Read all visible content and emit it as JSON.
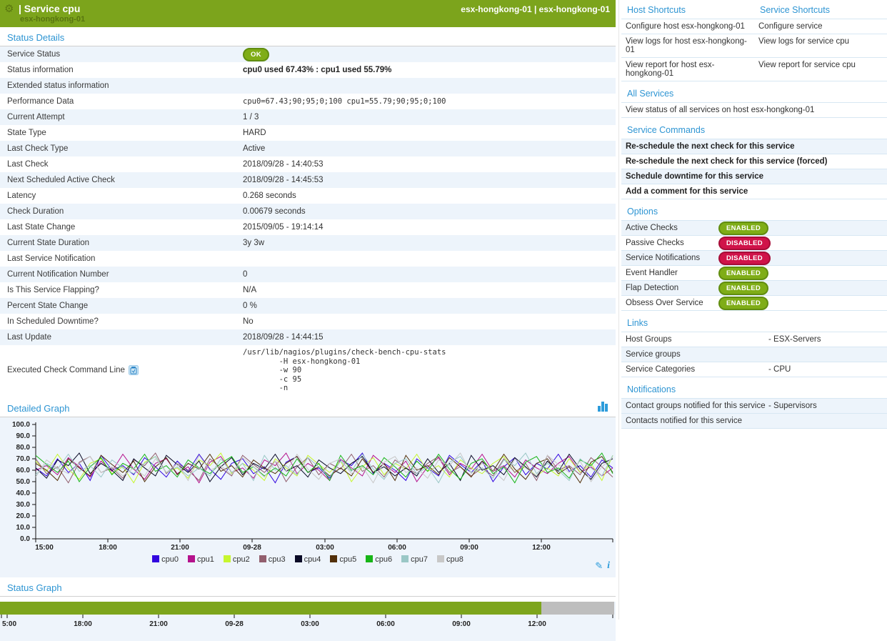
{
  "colors": {
    "accent_green": "#7CA41C",
    "link_blue": "#2E95D3",
    "enabled_green": "#7FAD17",
    "disabled_red": "#D01349",
    "row_alt": "#EDF4FB",
    "panel_bg": "#EEF4FB",
    "status_ok_bar": "#7DA51C",
    "status_nodata_bar": "#BEBEBE"
  },
  "icons": {
    "gear": "⚙",
    "pencil": "✎",
    "info": "i",
    "bar_chart": "bar-chart-icon",
    "copy": "clipboard-icon"
  },
  "header": {
    "title": "| Service cpu",
    "subtitle": "esx-hongkong-01",
    "right": "esx-hongkong-01 | esx-hongkong-01"
  },
  "status_details": {
    "heading": "Status Details",
    "rows": [
      {
        "label": "Service Status",
        "kind": "badge",
        "value": "OK"
      },
      {
        "label": "Status information",
        "kind": "bold",
        "value": "cpu0 used 67.43% : cpu1 used 55.79%"
      },
      {
        "label": "Extended status information",
        "kind": "text",
        "value": ""
      },
      {
        "label": "Performance Data",
        "kind": "mono",
        "value": "cpu0=67.43;90;95;0;100 cpu1=55.79;90;95;0;100"
      },
      {
        "label": "Current Attempt",
        "kind": "text",
        "value": "1 / 3"
      },
      {
        "label": "State Type",
        "kind": "text",
        "value": "HARD"
      },
      {
        "label": "Last Check Type",
        "kind": "text",
        "value": "Active"
      },
      {
        "label": "Last Check",
        "kind": "text",
        "value": "2018/09/28 - 14:40:53"
      },
      {
        "label": "Next Scheduled Active Check",
        "kind": "text",
        "value": "2018/09/28 - 14:45:53"
      },
      {
        "label": "Latency",
        "kind": "text",
        "value": "0.268 seconds"
      },
      {
        "label": "Check Duration",
        "kind": "text",
        "value": "0.00679 seconds"
      },
      {
        "label": "Last State Change",
        "kind": "text",
        "value": "2015/09/05 - 19:14:14"
      },
      {
        "label": "Current State Duration",
        "kind": "text",
        "value": "3y 3w"
      },
      {
        "label": "Last Service Notification",
        "kind": "text",
        "value": ""
      },
      {
        "label": "Current Notification Number",
        "kind": "text",
        "value": "0"
      },
      {
        "label": "Is This Service Flapping?",
        "kind": "text",
        "value": "N/A"
      },
      {
        "label": "Percent State Change",
        "kind": "text",
        "value": "0 %"
      },
      {
        "label": "In Scheduled Downtime?",
        "kind": "text",
        "value": "No"
      },
      {
        "label": "Last Update",
        "kind": "text",
        "value": "2018/09/28 - 14:44:15"
      },
      {
        "label": "Executed Check Command Line",
        "icon": "copy-command-icon",
        "kind": "command",
        "value": "/usr/lib/nagios/plugins/check-bench-cpu-stats\n        -H esx-hongkong-01\n        -w 90\n        -c 95\n        -n"
      }
    ]
  },
  "detailed_graph": {
    "heading": "Detailed Graph"
  },
  "status_graph": {
    "heading": "Status Graph"
  },
  "chart_data": [
    {
      "type": "line",
      "title": "Detailed Graph",
      "ylabel": "",
      "xlabel": "",
      "ylim": [
        0,
        100
      ],
      "yticks": [
        0,
        10,
        20,
        30,
        40,
        50,
        60,
        70,
        80,
        90,
        100
      ],
      "ytick_format": "one-decimal",
      "xticklabels": [
        "15:00",
        "18:00",
        "21:00",
        "09-28",
        "03:00",
        "06:00",
        "09:00",
        "12:00"
      ],
      "grid": false,
      "legend_position": "bottom",
      "series": [
        {
          "name": "cpu0",
          "color": "#3205DF",
          "values": [
            62,
            55,
            70,
            58,
            66,
            51,
            73,
            60,
            64,
            56,
            71,
            63,
            54,
            68,
            59,
            74,
            61,
            52,
            66,
            70,
            57,
            63,
            49,
            67,
            72,
            58,
            62,
            53,
            69,
            64,
            75,
            57,
            66,
            60,
            51,
            70,
            62,
            55,
            73,
            65,
            58,
            68,
            50,
            63,
            71,
            56,
            66,
            61,
            74,
            59,
            64,
            54,
            69,
            62
          ]
        },
        {
          "name": "cpu1",
          "color": "#B5128C",
          "values": [
            60,
            64,
            56,
            71,
            63,
            54,
            68,
            59,
            74,
            61,
            52,
            66,
            70,
            57,
            63,
            49,
            67,
            72,
            58,
            62,
            53,
            69,
            64,
            75,
            57,
            66,
            60,
            51,
            70,
            62,
            55,
            73,
            65,
            58,
            68,
            50,
            63,
            71,
            56,
            66,
            61,
            74,
            59,
            64,
            54,
            69,
            62,
            57,
            66,
            72,
            58,
            63,
            55,
            62
          ]
        },
        {
          "name": "cpu2",
          "color": "#C7F62E",
          "values": [
            68,
            59,
            74,
            61,
            52,
            66,
            70,
            57,
            63,
            49,
            67,
            72,
            58,
            62,
            53,
            69,
            64,
            75,
            57,
            66,
            60,
            51,
            70,
            62,
            55,
            73,
            65,
            58,
            68,
            50,
            63,
            71,
            56,
            66,
            61,
            74,
            59,
            64,
            54,
            69,
            62,
            57,
            66,
            72,
            58,
            63,
            55,
            62,
            55,
            70,
            58,
            66,
            51,
            73
          ]
        },
        {
          "name": "cpu3",
          "color": "#925F6E",
          "values": [
            70,
            57,
            63,
            49,
            67,
            72,
            58,
            62,
            53,
            69,
            64,
            75,
            57,
            66,
            60,
            51,
            70,
            62,
            55,
            73,
            65,
            58,
            68,
            50,
            63,
            71,
            56,
            66,
            61,
            74,
            59,
            64,
            54,
            69,
            62,
            57,
            66,
            72,
            58,
            63,
            55,
            62,
            55,
            70,
            58,
            66,
            51,
            73,
            60,
            64,
            56,
            71,
            63,
            54
          ]
        },
        {
          "name": "cpu4",
          "color": "#0A0A26",
          "values": [
            62,
            53,
            69,
            64,
            75,
            57,
            66,
            60,
            51,
            70,
            62,
            55,
            73,
            65,
            58,
            68,
            50,
            63,
            71,
            56,
            66,
            61,
            74,
            59,
            64,
            54,
            69,
            62,
            57,
            66,
            72,
            58,
            63,
            55,
            62,
            55,
            70,
            58,
            66,
            51,
            73,
            60,
            64,
            56,
            71,
            63,
            54,
            68,
            59,
            74,
            61,
            52,
            66,
            70
          ]
        },
        {
          "name": "cpu5",
          "color": "#53300A",
          "values": [
            66,
            60,
            51,
            70,
            62,
            55,
            73,
            65,
            58,
            68,
            50,
            63,
            71,
            56,
            66,
            61,
            74,
            59,
            64,
            54,
            69,
            62,
            57,
            66,
            72,
            58,
            63,
            55,
            62,
            55,
            70,
            58,
            66,
            51,
            73,
            60,
            64,
            56,
            71,
            63,
            54,
            68,
            59,
            74,
            61,
            52,
            66,
            70,
            57,
            63,
            49,
            67,
            72,
            58
          ]
        },
        {
          "name": "cpu6",
          "color": "#17B517",
          "values": [
            73,
            65,
            58,
            68,
            50,
            63,
            71,
            56,
            66,
            61,
            74,
            59,
            64,
            54,
            69,
            62,
            57,
            66,
            72,
            58,
            63,
            55,
            62,
            55,
            70,
            58,
            66,
            51,
            73,
            60,
            64,
            56,
            71,
            63,
            54,
            68,
            59,
            74,
            61,
            52,
            66,
            70,
            57,
            63,
            49,
            67,
            72,
            58,
            62,
            53,
            69,
            64,
            75,
            57
          ]
        },
        {
          "name": "cpu7",
          "color": "#9AC7C6",
          "values": [
            56,
            66,
            61,
            74,
            59,
            64,
            54,
            69,
            62,
            57,
            66,
            72,
            58,
            63,
            55,
            62,
            55,
            70,
            58,
            66,
            51,
            73,
            60,
            64,
            56,
            71,
            63,
            54,
            68,
            59,
            74,
            61,
            52,
            66,
            70,
            57,
            63,
            49,
            67,
            72,
            58,
            62,
            53,
            69,
            64,
            75,
            57,
            66,
            60,
            51,
            70,
            62,
            55,
            73
          ]
        },
        {
          "name": "cpu8",
          "color": "#C8C8C8",
          "values": [
            54,
            69,
            62,
            57,
            66,
            72,
            58,
            63,
            55,
            62,
            55,
            70,
            58,
            66,
            51,
            73,
            60,
            64,
            56,
            71,
            63,
            54,
            68,
            59,
            74,
            61,
            52,
            66,
            70,
            57,
            63,
            49,
            67,
            72,
            58,
            62,
            53,
            69,
            64,
            75,
            57,
            66,
            60,
            51,
            70,
            62,
            55,
            73,
            65,
            58,
            68,
            50,
            63,
            71
          ]
        }
      ]
    },
    {
      "type": "area",
      "title": "Status Graph",
      "xticklabels": [
        "5:00",
        "18:00",
        "21:00",
        "09-28",
        "03:00",
        "06:00",
        "09:00",
        "12:00"
      ],
      "segments": [
        {
          "label": "ok",
          "color": "#7DA51C",
          "fraction": 0.881
        },
        {
          "label": "no-data",
          "color": "#BEBEBE",
          "fraction": 0.119
        }
      ]
    }
  ],
  "right_panel": {
    "shortcuts": {
      "host_heading": "Host Shortcuts",
      "service_heading": "Service Shortcuts",
      "rows": [
        [
          "Configure host esx-hongkong-01",
          "Configure service"
        ],
        [
          "View logs for host esx-hongkong-01",
          "View logs for service cpu"
        ],
        [
          "View report for host esx-hongkong-01",
          "View report for service cpu"
        ]
      ]
    },
    "all_services": {
      "heading": "All Services",
      "items": [
        "View status of all services on host esx-hongkong-01"
      ]
    },
    "service_commands": {
      "heading": "Service Commands",
      "items": [
        "Re-schedule the next check for this service",
        "Re-schedule the next check for this service (forced)",
        "Schedule downtime for this service",
        "Add a comment for this service"
      ]
    },
    "options": {
      "heading": "Options",
      "items": [
        {
          "label": "Active Checks",
          "state": "ENABLED"
        },
        {
          "label": "Passive Checks",
          "state": "DISABLED"
        },
        {
          "label": "Service Notifications",
          "state": "DISABLED"
        },
        {
          "label": "Event Handler",
          "state": "ENABLED"
        },
        {
          "label": "Flap Detection",
          "state": "ENABLED"
        },
        {
          "label": "Obsess Over Service",
          "state": "ENABLED"
        }
      ]
    },
    "links": {
      "heading": "Links",
      "items": [
        {
          "label": "Host Groups",
          "value": "- ESX-Servers"
        },
        {
          "label": "Service groups",
          "value": ""
        },
        {
          "label": "Service Categories",
          "value": "- CPU"
        }
      ]
    },
    "notifications": {
      "heading": "Notifications",
      "items": [
        {
          "label": "Contact groups notified for this service",
          "value": "- Supervisors"
        },
        {
          "label": "Contacts notified for this service",
          "value": ""
        }
      ]
    }
  }
}
